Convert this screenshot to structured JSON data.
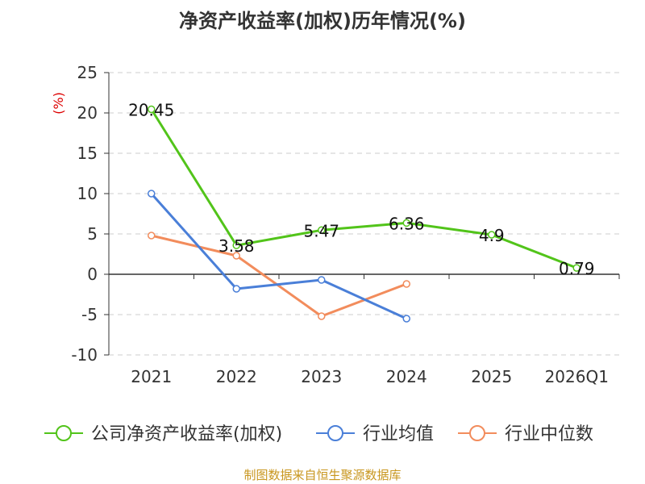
{
  "chart_data": {
    "type": "line",
    "title": "净资产收益率(加权)历年情况(%)",
    "ylabel": "(%)",
    "xlabel": "",
    "categories": [
      "2021",
      "2022",
      "2023",
      "2024",
      "2025",
      "2026Q1"
    ],
    "ylim": [
      -10,
      25
    ],
    "yticks": [
      -10,
      -5,
      0,
      5,
      10,
      15,
      20,
      25
    ],
    "grid": true,
    "legend_position": "bottom",
    "series": [
      {
        "name": "公司净资产收益率(加权)",
        "color": "#52c41a",
        "values": [
          20.45,
          3.58,
          5.47,
          6.36,
          4.9,
          0.79
        ],
        "labels": [
          "20.45",
          "3.58",
          "5.47",
          "6.36",
          "4.9",
          "0.79"
        ]
      },
      {
        "name": "行业均值",
        "color": "#4a7fd8",
        "values": [
          10.0,
          -1.8,
          -0.7,
          -5.5,
          null,
          null
        ]
      },
      {
        "name": "行业中位数",
        "color": "#f28c5c",
        "values": [
          4.8,
          2.3,
          -5.2,
          -1.2,
          null,
          null
        ]
      }
    ],
    "ylabel_color": "#dd0000"
  },
  "footer": {
    "source": "制图数据来自恒生聚源数据库",
    "color": "#c8961e"
  }
}
